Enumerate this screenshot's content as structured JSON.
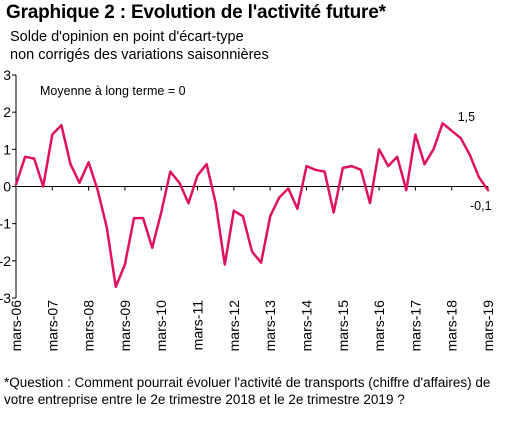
{
  "header": {
    "title": "Graphique 2 : Evolution de l'activité future*",
    "subtitle_line1": "Solde d'opinion en point d'écart-type",
    "subtitle_line2": "non corrigés des variations saisonnières"
  },
  "footnote": "*Question : Comment pourrait évoluer l'activité de transports (chiffre d'affaires) de votre entreprise entre le 2e trimestre 2018 et le 2e trimestre 2019 ?",
  "chart_data": {
    "type": "line",
    "title": "Graphique 2 : Evolution de l'activité future*",
    "subtitle": "Solde d'opinion en point d'écart-type non corrigés des variations saisonnières",
    "xlabel": "",
    "ylabel": "",
    "ylim": [
      -3,
      3
    ],
    "yticks": [
      3,
      2,
      1,
      0,
      -1,
      -2,
      -3
    ],
    "grid": false,
    "annotation": "Moyenne à long terme = 0",
    "line_color": "#e0115f",
    "x_tick_labels": [
      "mars-06",
      "mars-07",
      "mars-08",
      "mars-09",
      "mars-10",
      "mars-11",
      "mars-12",
      "mars-13",
      "mars-14",
      "mars-15",
      "mars-16",
      "mars-17",
      "mars-18",
      "mars-19"
    ],
    "series": [
      {
        "x": [
          "2006-03",
          "2006-06",
          "2006-09",
          "2006-12",
          "2007-03",
          "2007-06",
          "2007-09",
          "2007-12",
          "2008-03",
          "2008-06",
          "2008-09",
          "2008-12",
          "2009-03",
          "2009-06",
          "2009-09",
          "2009-12",
          "2010-03",
          "2010-06",
          "2010-09",
          "2010-12",
          "2011-03",
          "2011-06",
          "2011-09",
          "2011-12",
          "2012-03",
          "2012-06",
          "2012-09",
          "2012-12",
          "2013-03",
          "2013-06",
          "2013-09",
          "2013-12",
          "2014-03",
          "2014-06",
          "2014-09",
          "2014-12",
          "2015-03",
          "2015-06",
          "2015-09",
          "2015-12",
          "2016-03",
          "2016-06",
          "2016-09",
          "2016-12",
          "2017-03",
          "2017-06",
          "2017-09",
          "2017-12",
          "2018-03",
          "2018-06",
          "2018-09",
          "2018-12",
          "2019-03"
        ],
        "values": [
          0.05,
          0.8,
          0.75,
          0.0,
          1.4,
          1.65,
          0.6,
          0.1,
          0.65,
          -0.1,
          -1.1,
          -2.7,
          -2.1,
          -0.85,
          -0.85,
          -1.65,
          -0.7,
          0.4,
          0.1,
          -0.45,
          0.3,
          0.6,
          -0.45,
          -2.1,
          -0.65,
          -0.8,
          -1.75,
          -2.05,
          -0.8,
          -0.3,
          -0.05,
          -0.6,
          0.55,
          0.45,
          0.4,
          -0.7,
          0.5,
          0.55,
          0.45,
          -0.45,
          1.0,
          0.55,
          0.8,
          -0.1,
          1.4,
          0.6,
          1.0,
          1.7,
          1.5,
          1.3,
          0.85,
          0.25,
          -0.1
        ]
      }
    ],
    "data_labels": [
      {
        "x": "2018-03",
        "text": "1,5"
      },
      {
        "x": "2019-03",
        "text": "-0,1"
      }
    ]
  }
}
